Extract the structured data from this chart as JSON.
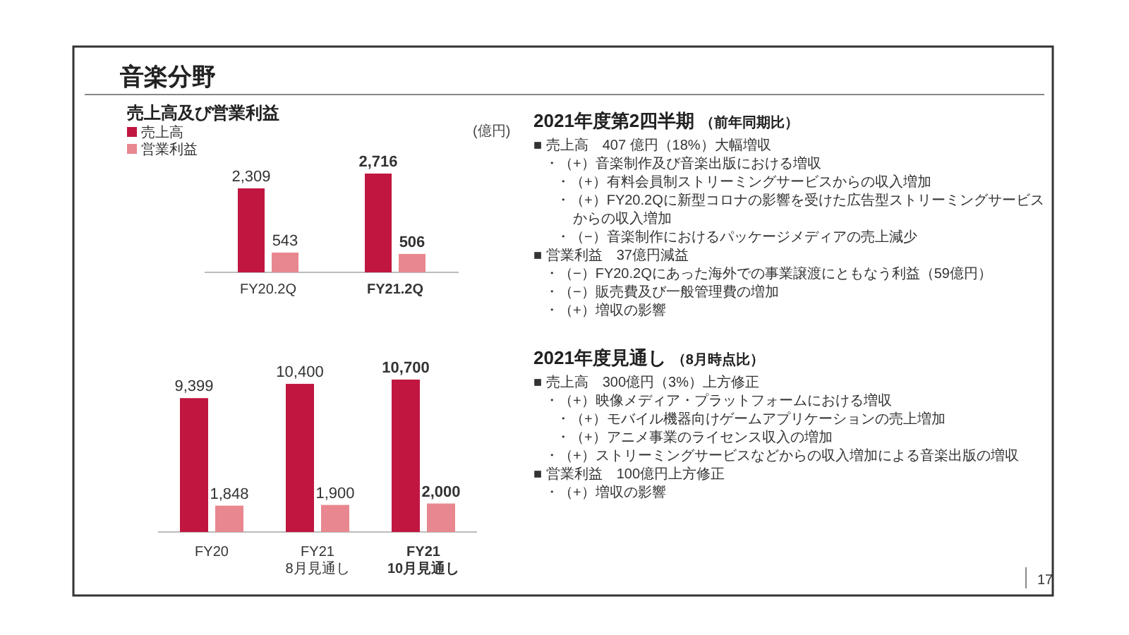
{
  "chart_data": [
    {
      "type": "bar",
      "title": "音楽分野",
      "subtitle": "売上高及び営業利益",
      "annotations": [
        "(億円)"
      ],
      "categories": [
        "FY20.2Q",
        "FY21.2Q"
      ],
      "series": [
        {
          "name": "売上高",
          "color": "#c0163f",
          "values": [
            2309,
            2716
          ],
          "value_labels": [
            "2,309",
            "2,716"
          ]
        },
        {
          "name": "営業利益",
          "color": "#e8878f",
          "values": [
            543,
            506
          ],
          "value_labels": [
            "543",
            "506"
          ]
        }
      ],
      "legend": "top left"
    },
    {
      "type": "bar",
      "categories": [
        "FY20",
        "FY21\n8月見通し",
        "FY21\n10月見通し"
      ],
      "series": [
        {
          "color": "#c0163f",
          "values": [
            9399,
            10400,
            10700
          ],
          "value_labels": [
            "9,399",
            "10,400",
            "10,700"
          ]
        },
        {
          "color": "#e8878f",
          "values": [
            1848,
            1900,
            2000
          ],
          "value_labels": [
            "1,848",
            "1,900",
            "2,000"
          ]
        }
      ]
    },
    {
      "type": "other",
      "title": "2021年度第2四半期",
      "subtitle": "（前年同期比）",
      "annotations": [
        "■ 売上高　407 億円（18%）大幅増収",
        "  ・（+）音楽制作及び音楽出版における増収",
        "    ・（+）有料会員制ストリーミングサービスからの収入増加",
        "    ・（+）FY20.2Qに新型コロナの影響を受けた広告型ストリーミングサービス",
        "       からの収入増加",
        "    ・（−）音楽制作におけるパッケージメディアの売上減少",
        "■ 営業利益　37億円減益",
        "  ・（−）FY20.2Qにあった海外での事業譲渡にともなう利益（59億円）",
        "  ・（−）販売費及び一般管理費の増加",
        "  ・（+）増収の影響"
      ]
    },
    {
      "type": "other",
      "title": "2021年度見通し",
      "subtitle": "（8月時点比）",
      "annotations": [
        "■ 売上高　300億円（3%）上方修正",
        "  ・（+）映像メディア・プラットフォームにおける増収",
        "    ・（+）モバイル機器向けゲームアプリケーションの売上増加",
        "    ・（+）アニメ事業のライセンス収入の増加",
        "  ・（+）ストリーミングサービスなどからの収入増加による音楽出版の増収",
        "■ 営業利益　100億円上方修正",
        "  ・（+）増収の影響"
      ]
    },
    {
      "type": "other",
      "annotations": [
        "17"
      ]
    }
  ]
}
